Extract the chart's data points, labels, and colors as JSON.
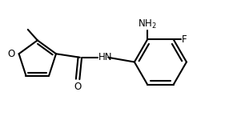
{
  "bg_color": "#ffffff",
  "line_color": "#000000",
  "line_width": 1.5,
  "font_size": 8.5,
  "fig_width": 2.96,
  "fig_height": 1.55,
  "dpi": 100,
  "xlim": [
    0,
    3.2
  ],
  "ylim": [
    0,
    1.7
  ]
}
